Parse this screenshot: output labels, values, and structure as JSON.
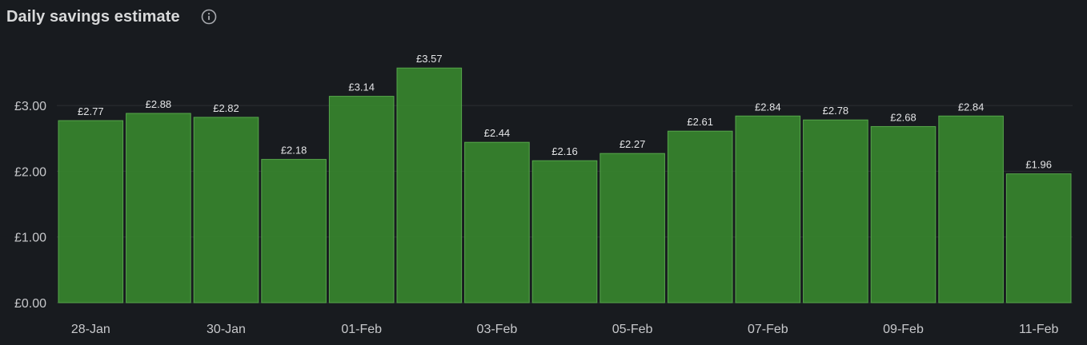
{
  "panel": {
    "title": "Daily savings estimate",
    "info_icon": "info-circle-icon"
  },
  "colors": {
    "background": "#181b1f",
    "bar_fill": "#37872d",
    "bar_stroke": "#56a64b",
    "text": "#d8d9da",
    "grid": "#2c2f34"
  },
  "chart_data": {
    "type": "bar",
    "title": "Daily savings estimate",
    "categories": [
      "28-Jan",
      "29-Jan",
      "30-Jan",
      "31-Jan",
      "01-Feb",
      "02-Feb",
      "03-Feb",
      "04-Feb",
      "05-Feb",
      "06-Feb",
      "07-Feb",
      "08-Feb",
      "09-Feb",
      "10-Feb",
      "11-Feb"
    ],
    "x_tick_labels": [
      "28-Jan",
      "",
      "30-Jan",
      "",
      "01-Feb",
      "",
      "03-Feb",
      "",
      "05-Feb",
      "",
      "07-Feb",
      "",
      "09-Feb",
      "",
      "11-Feb"
    ],
    "values": [
      2.77,
      2.88,
      2.82,
      2.18,
      3.14,
      3.57,
      2.44,
      2.16,
      2.27,
      2.61,
      2.84,
      2.78,
      2.68,
      2.84,
      1.96
    ],
    "data_labels": [
      "£2.77",
      "£2.88",
      "£2.82",
      "£2.18",
      "£3.14",
      "£3.57",
      "£2.44",
      "£2.16",
      "£2.27",
      "£2.61",
      "£2.84",
      "£2.78",
      "£2.68",
      "£2.84",
      "£1.96"
    ],
    "y_ticks": [
      0,
      1,
      2,
      3
    ],
    "y_tick_labels": [
      "£0.00",
      "£1.00",
      "£2.00",
      "£3.00"
    ],
    "xlabel": "",
    "ylabel": "",
    "grid": true,
    "legend": "none"
  }
}
